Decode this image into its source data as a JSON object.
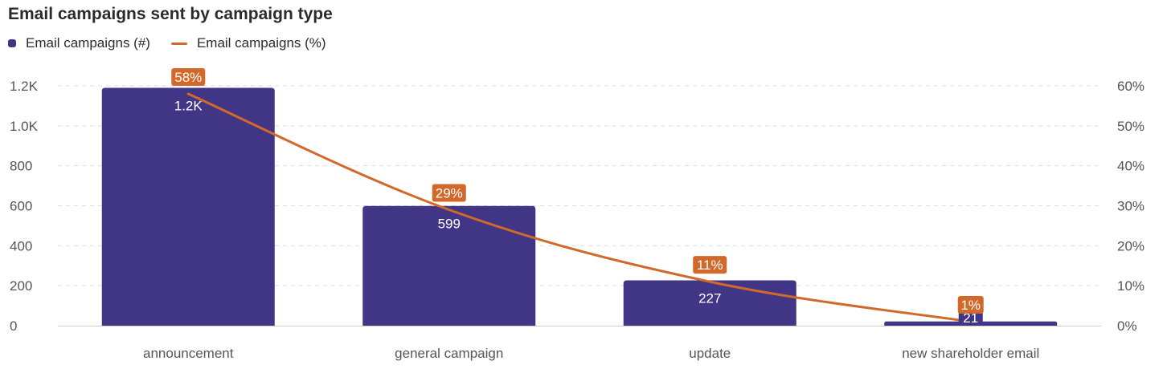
{
  "colors": {
    "bar": "#413685",
    "line": "#d2692b",
    "grid": "#dedede",
    "axis_text": "#555555",
    "baseline": "#cccccc"
  },
  "chart_data": {
    "type": "bar",
    "title": "Email campaigns sent by campaign type",
    "categories": [
      "announcement",
      "general campaign",
      "update",
      "new shareholder email"
    ],
    "series": [
      {
        "name": "Email campaigns (#)",
        "type": "bar",
        "axis": "left",
        "values": [
          1190,
          599,
          227,
          21
        ],
        "labels": [
          "1.2K",
          "599",
          "227",
          "21"
        ]
      },
      {
        "name": "Email campaigns (%)",
        "type": "line",
        "axis": "right",
        "values": [
          58,
          29,
          11,
          1
        ],
        "labels": [
          "58%",
          "29%",
          "11%",
          "1%"
        ]
      }
    ],
    "left_axis": {
      "ylim": [
        0,
        1200
      ],
      "ticks": [
        0,
        200,
        400,
        600,
        800,
        1000,
        1200
      ],
      "tick_labels": [
        "0",
        "200",
        "400",
        "600",
        "800",
        "1.0K",
        "1.2K"
      ]
    },
    "right_axis": {
      "ylim": [
        0,
        60
      ],
      "ticks": [
        0,
        10,
        20,
        30,
        40,
        50,
        60
      ],
      "tick_labels": [
        "0%",
        "10%",
        "20%",
        "30%",
        "40%",
        "50%",
        "60%"
      ]
    },
    "grid": true,
    "legend_position": "top-left"
  }
}
